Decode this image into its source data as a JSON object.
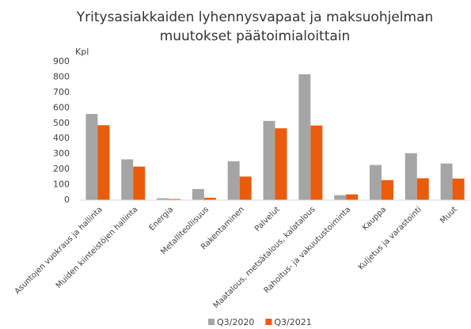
{
  "chart_data": {
    "type": "bar",
    "title": [
      "Yritysasiakkaiden lyhennysvapaat ja maksuohjelman",
      "muutokset päätoimialoittain"
    ],
    "y_label": "Kpl",
    "categories": [
      "Asuntojen vuokraus ja hallinta",
      "Muiden kiinteistöjen hallinta",
      "Energia",
      "Metalliteollisuus",
      "Rakentaminen",
      "Palvelut",
      "Maatalous, metsätalous, kalatalous",
      "Rahoitus- ja vakuutustoiminta",
      "Kauppa",
      "Kuljetus ja varastointi",
      "Muut"
    ],
    "series": [
      {
        "name": "Q3/2020",
        "color": "#a5a5a5",
        "values": [
          560,
          265,
          12,
          72,
          252,
          515,
          818,
          32,
          228,
          305,
          238
        ]
      },
      {
        "name": "Q3/2021",
        "color": "#ea5b0c",
        "values": [
          487,
          218,
          7,
          15,
          153,
          467,
          485,
          37,
          130,
          142,
          140
        ]
      }
    ],
    "ylim": [
      0,
      900
    ],
    "yticks": [
      0,
      100,
      200,
      300,
      400,
      500,
      600,
      700,
      800,
      900
    ],
    "grid": false,
    "legend": "bottom"
  }
}
